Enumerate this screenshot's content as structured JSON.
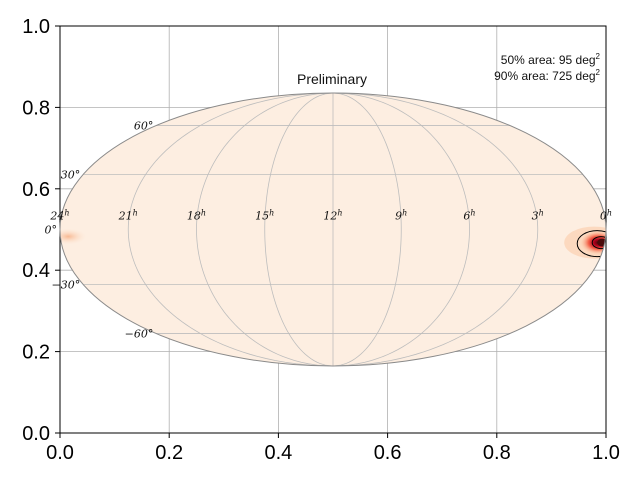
{
  "chart_data": {
    "type": "heatmap",
    "title": "Preliminary",
    "projection": "mollweide",
    "xlim": [
      0.0,
      1.0
    ],
    "ylim": [
      0.0,
      1.0
    ],
    "x_ticks": [
      "0.0",
      "0.2",
      "0.4",
      "0.6",
      "0.8",
      "1.0"
    ],
    "y_ticks": [
      "0.0",
      "0.2",
      "0.4",
      "0.6",
      "0.8",
      "1.0"
    ],
    "x_tick_values": [
      0.0,
      0.2,
      0.4,
      0.6,
      0.8,
      1.0
    ],
    "y_tick_values": [
      0.0,
      0.2,
      0.4,
      0.6,
      0.8,
      1.0
    ],
    "grid": true,
    "ra_labels": [
      {
        "hour": 24,
        "text": "24",
        "sup": "h"
      },
      {
        "hour": 21,
        "text": "21",
        "sup": "h"
      },
      {
        "hour": 18,
        "text": "18",
        "sup": "h"
      },
      {
        "hour": 15,
        "text": "15",
        "sup": "h"
      },
      {
        "hour": 12,
        "text": "12",
        "sup": "h"
      },
      {
        "hour": 9,
        "text": "9",
        "sup": "h"
      },
      {
        "hour": 6,
        "text": "6",
        "sup": "h"
      },
      {
        "hour": 3,
        "text": "3",
        "sup": "h"
      },
      {
        "hour": 0,
        "text": "0",
        "sup": "h"
      }
    ],
    "dec_labels": [
      {
        "dec": 60,
        "text": "60°"
      },
      {
        "dec": 30,
        "text": "30°"
      },
      {
        "dec": 0,
        "text": "0°"
      },
      {
        "dec": -30,
        "text": "−30°"
      },
      {
        "dec": -60,
        "text": "−60°"
      }
    ],
    "annotations": {
      "area50_prefix": "50% area: 95 deg",
      "area90_prefix": "90% area: 725 deg",
      "unit_sup": "2"
    },
    "hotspot": {
      "ra_hours": 0.2,
      "dec_deg": -7
    },
    "colors": {
      "sky_fill": "#fdeee1",
      "outline": "#8a8a8a",
      "graticule": "#bdbdbd",
      "heat_low": "#fcc9a4",
      "heat_mid": "#f4634a",
      "heat_high": "#b3001d",
      "heat_core": "#4a0a0a",
      "contour": "#000000"
    }
  }
}
